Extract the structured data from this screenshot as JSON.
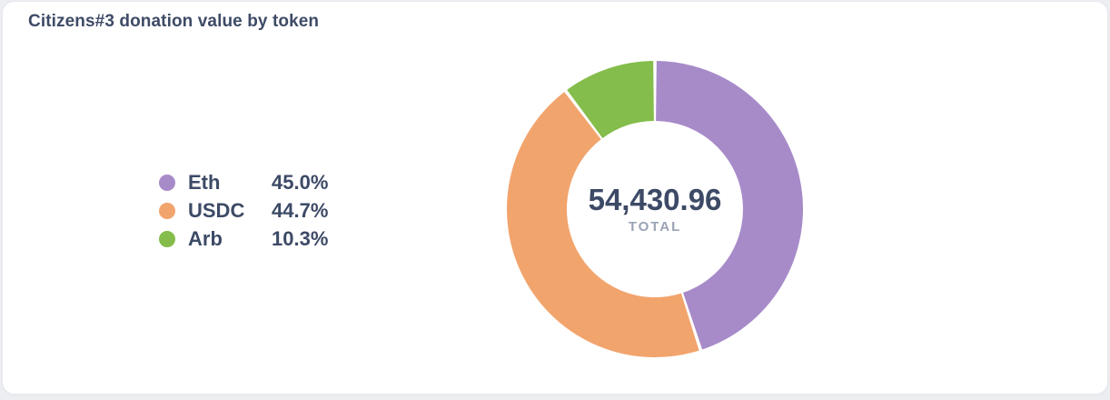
{
  "card": {
    "title": "Citizens#3 donation value by token"
  },
  "chart_data": {
    "type": "pie",
    "donut": true,
    "title": "Citizens#3 donation value by token",
    "legend_position": "left",
    "start_angle_deg": 0,
    "direction": "clockwise",
    "center": {
      "total_value": "54,430.96",
      "total_caption": "TOTAL"
    },
    "slices": [
      {
        "label": "Eth",
        "value": 45.0,
        "pct_label": "45.0%",
        "color": "#a78bc9"
      },
      {
        "label": "USDC",
        "value": 44.7,
        "pct_label": "44.7%",
        "color": "#f2a46d"
      },
      {
        "label": "Arb",
        "value": 10.3,
        "pct_label": "10.3%",
        "color": "#84bd4b"
      }
    ]
  },
  "colors": {
    "page_background": "#edeef1",
    "card_background": "#ffffff",
    "card_border": "#e8eaee",
    "text_dark": "#3d4a66",
    "text_muted": "#9aa3b4",
    "segment_gap": "#ffffff"
  }
}
